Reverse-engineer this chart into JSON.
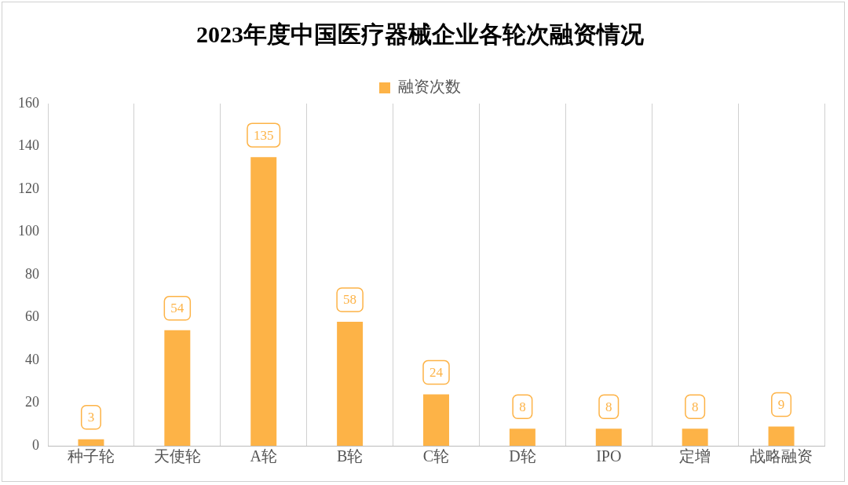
{
  "chart_data": {
    "type": "bar",
    "title": "2023年度中国医疗器械企业各轮次融资情况",
    "categories": [
      "种子轮",
      "天使轮",
      "A轮",
      "B轮",
      "C轮",
      "D轮",
      "IPO",
      "定增",
      "战略融资"
    ],
    "series": [
      {
        "name": "融资次数",
        "color": "#fdb347",
        "values": [
          3,
          54,
          135,
          58,
          24,
          8,
          8,
          8,
          9
        ]
      }
    ],
    "ylim": [
      0,
      160
    ],
    "yticks": [
      0,
      20,
      40,
      60,
      80,
      100,
      120,
      140,
      160
    ],
    "grid": "x",
    "legend": "top",
    "data_labels": true
  }
}
